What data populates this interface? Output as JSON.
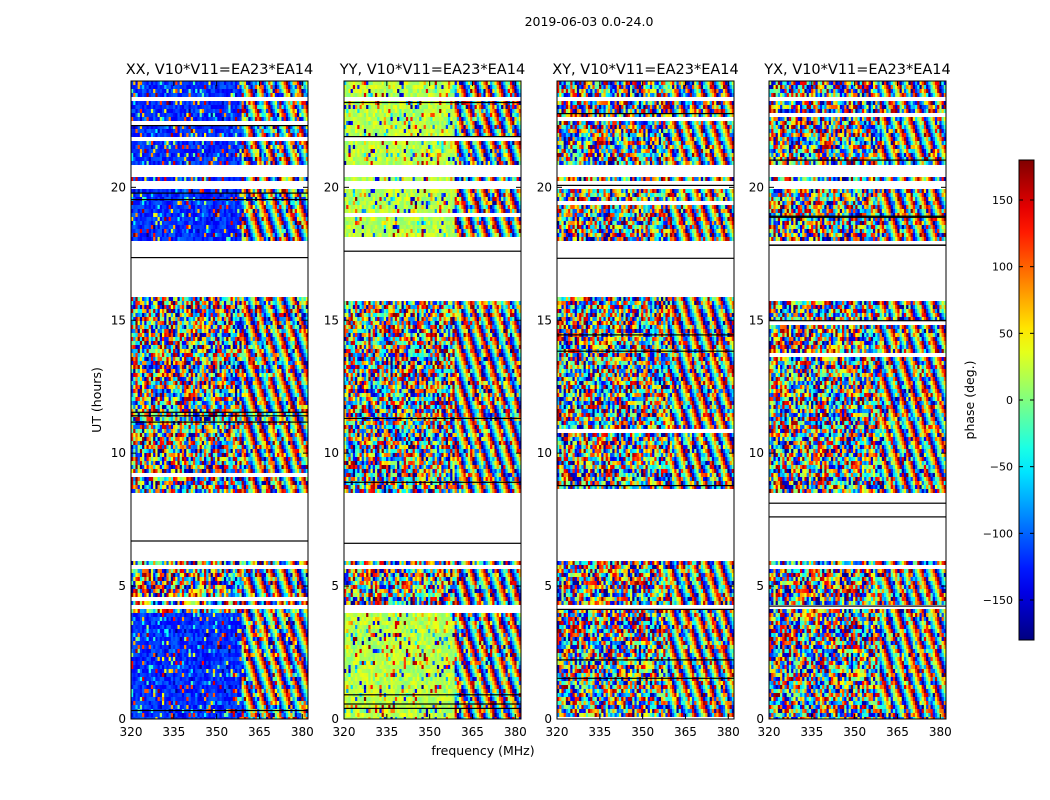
{
  "figure": {
    "suptitle": "2019-06-03 0.0-24.0",
    "xlabel": "frequency (MHz)",
    "ylabel": "UT (hours)"
  },
  "chart_data": {
    "type": "heatmap",
    "x_range": [
      320,
      382
    ],
    "y_range": [
      0,
      24
    ],
    "x_ticks": [
      320,
      335,
      350,
      365,
      380
    ],
    "x_tick_labels": [
      "320",
      "335",
      "350",
      "365",
      "380"
    ],
    "y_ticks": [
      0,
      5,
      10,
      15,
      20
    ],
    "y_tick_labels": [
      "0",
      "5",
      "10",
      "15",
      "20"
    ],
    "data_gaps_hours": [
      [
        4.2,
        4.3
      ],
      [
        6.0,
        8.5
      ],
      [
        15.9,
        18.0
      ],
      [
        19.9,
        20.2
      ],
      [
        20.4,
        20.9
      ],
      [
        23.3,
        23.4
      ]
    ],
    "panels": [
      {
        "title": "XX, V10*V11=EA23*EA14",
        "base_phase_deg": -120
      },
      {
        "title": "YY, V10*V11=EA23*EA14",
        "base_phase_deg": 20
      },
      {
        "title": "XY, V10*V11=EA23*EA14",
        "base_phase_deg": null
      },
      {
        "title": "YX, V10*V11=EA23*EA14",
        "base_phase_deg": null
      }
    ],
    "colorbar": {
      "label": "phase (deg.)",
      "range": [
        -180,
        180
      ],
      "ticks": [
        -150,
        -100,
        -50,
        0,
        50,
        100,
        150
      ],
      "tick_labels": [
        "−150",
        "−100",
        "−50",
        "0",
        "50",
        "100",
        "150"
      ],
      "colormap": "jet"
    }
  }
}
